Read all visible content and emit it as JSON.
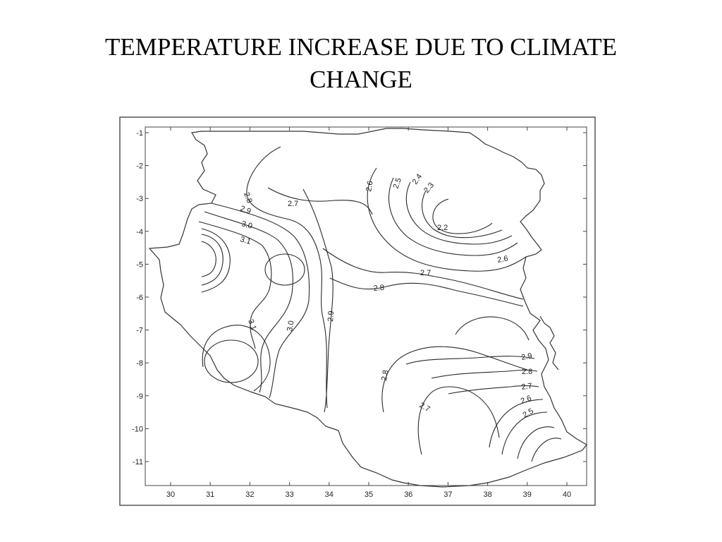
{
  "title": {
    "line1": "TEMPERATURE INCREASE DUE TO CLIMATE",
    "line2": "CHANGE"
  },
  "map": {
    "x_ticks": [
      "30",
      "31",
      "32",
      "33",
      "34",
      "35",
      "36",
      "37",
      "38",
      "39",
      "40"
    ],
    "y_ticks": [
      "-1",
      "-2",
      "-3",
      "-4",
      "-5",
      "-6",
      "-7",
      "-8",
      "-9",
      "-10",
      "-11"
    ],
    "contour_labels": [
      "2.8",
      "2.9",
      "3.0",
      "3.1",
      "2.7",
      "2.6",
      "2.5",
      "2.4",
      "2.3",
      "2.2",
      "2.6",
      "2.7",
      "2.8",
      "3.1",
      "3.0",
      "2.9",
      "2.8",
      "2.7",
      "2.9",
      "2.8",
      "2.7",
      "2.6",
      "2.5"
    ]
  }
}
